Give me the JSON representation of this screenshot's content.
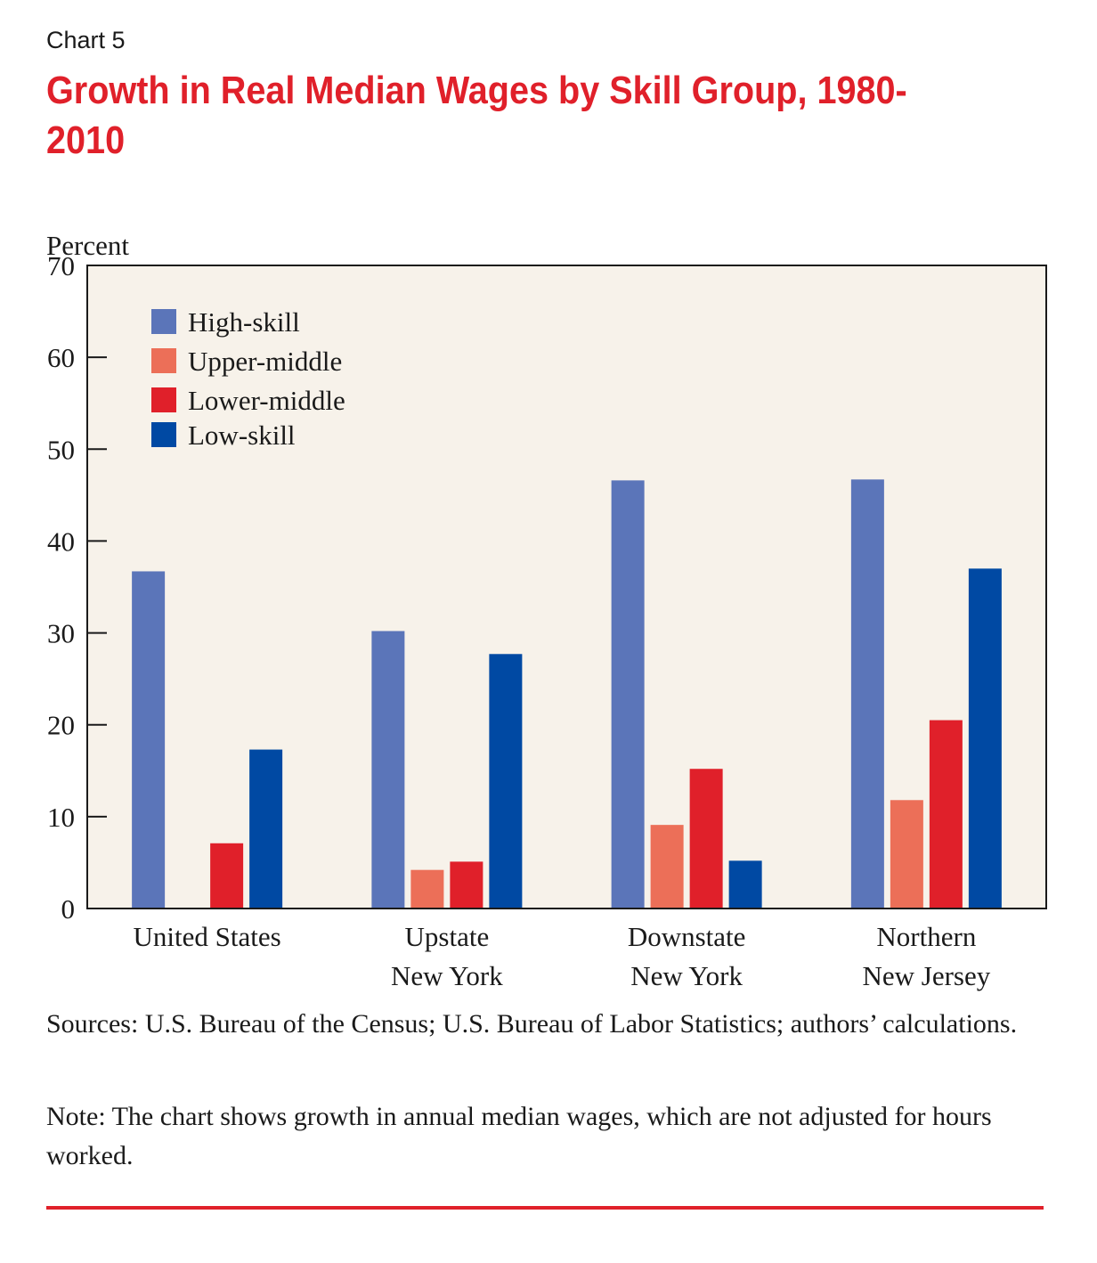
{
  "header": {
    "chart_label": "Chart 5",
    "title": "Growth in Real Median Wages by Skill Group, 1980-2010"
  },
  "chart_data": {
    "type": "bar",
    "title": "Growth in Real Median Wages by Skill Group, 1980-2010",
    "ylabel": "Percent",
    "xlabel": "",
    "ylim": [
      0,
      70
    ],
    "yticks": [
      0,
      10,
      20,
      30,
      40,
      50,
      60,
      70
    ],
    "grid": false,
    "legend_position": "top-left",
    "background_color": "#f7f2ea",
    "categories": [
      [
        "United States"
      ],
      [
        "Upstate",
        "New York"
      ],
      [
        "Downstate",
        "New York"
      ],
      [
        "Northern",
        "New Jersey"
      ]
    ],
    "series": [
      {
        "name": "High-skill",
        "color": "#5b75b9",
        "values": [
          36.7,
          30.2,
          46.6,
          46.7
        ]
      },
      {
        "name": "Upper-middle",
        "color": "#ec6f58",
        "values": [
          null,
          4.2,
          9.1,
          11.8
        ]
      },
      {
        "name": "Lower-middle",
        "color": "#e0202a",
        "values": [
          7.1,
          5.1,
          15.2,
          20.5
        ]
      },
      {
        "name": "Low-skill",
        "color": "#0049a3",
        "values": [
          17.3,
          27.7,
          5.2,
          37.0
        ]
      }
    ]
  },
  "footer": {
    "sources": "Sources: U.S. Bureau of the Census; U.S. Bureau of Labor Statistics; authors’ calculations.",
    "note": "Note: The chart shows growth in annual median wages, which are not adjusted for hours worked."
  },
  "colors": {
    "accent": "#e0202a"
  }
}
